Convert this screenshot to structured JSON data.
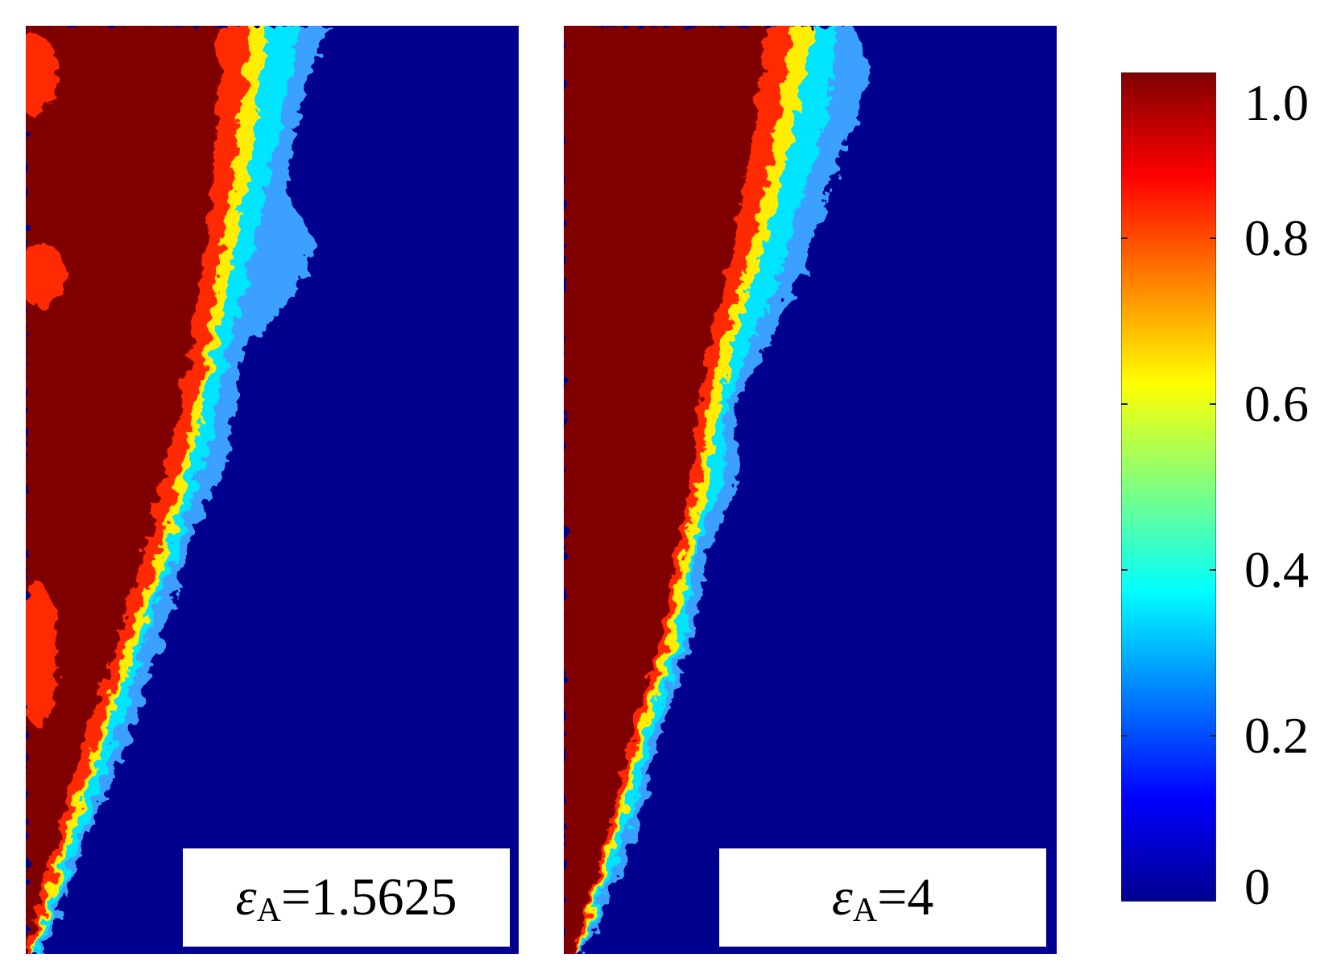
{
  "panels": [
    {
      "label_symbol": "ε",
      "label_subscript": "A",
      "label_value": "=1.5625"
    },
    {
      "label_symbol": "ε",
      "label_subscript": "A",
      "label_value": "=4"
    }
  ],
  "colorbar": {
    "ticks": [
      "1.0",
      "0.8",
      "0.6",
      "0.4",
      "0.2",
      "0"
    ],
    "tick_values": [
      1.0,
      0.8,
      0.6,
      0.4,
      0.2,
      0
    ],
    "colormap": [
      "#00008f",
      "#0000ff",
      "#00ffff",
      "#ffff00",
      "#ff0000",
      "#800000"
    ]
  }
}
